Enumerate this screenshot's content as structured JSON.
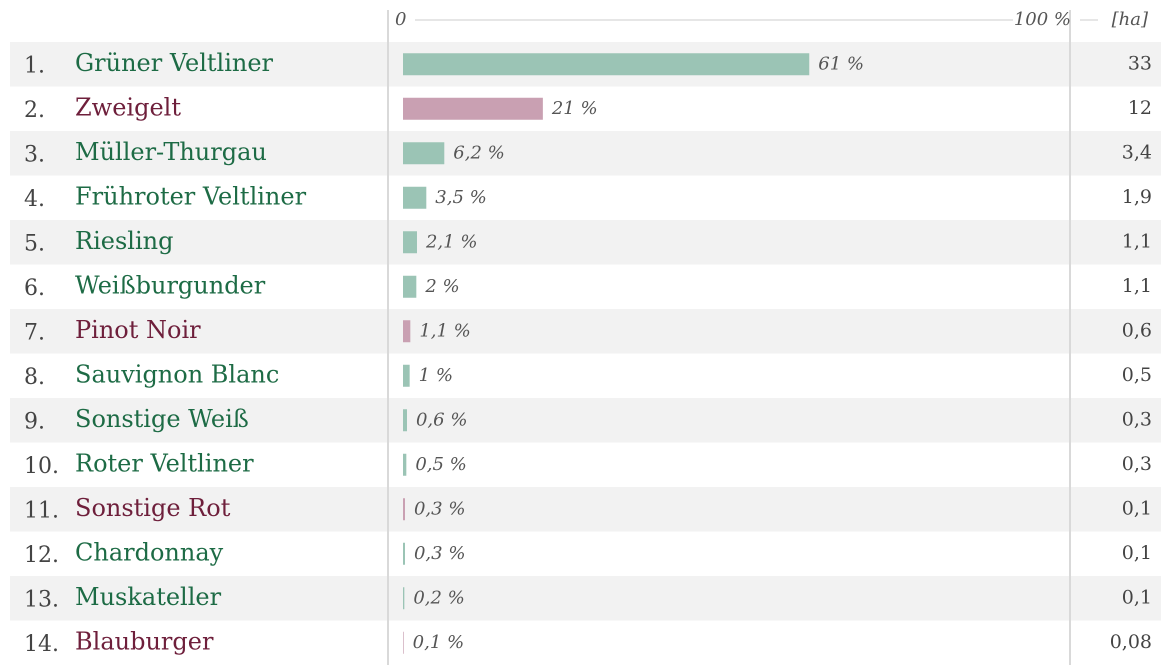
{
  "chart_data": {
    "type": "bar",
    "categories": [
      "Grüner Veltliner",
      "Zweigelt",
      "Müller-Thurgau",
      "Frühroter Veltliner",
      "Riesling",
      "Weißburgunder",
      "Pinot Noir",
      "Sauvignon Blanc",
      "Sonstige Weiß",
      "Roter Veltliner",
      "Sonstige Rot",
      "Chardonnay",
      "Muskateller",
      "Blauburger"
    ],
    "ranks": [
      "1.",
      "2.",
      "3.",
      "4.",
      "5.",
      "6.",
      "7.",
      "8.",
      "9.",
      "10.",
      "11.",
      "12.",
      "13.",
      "14."
    ],
    "values": [
      61,
      21,
      6.2,
      3.5,
      2.1,
      2,
      1.1,
      1,
      0.6,
      0.5,
      0.3,
      0.3,
      0.2,
      0.1
    ],
    "value_labels": [
      "61 %",
      "21 %",
      "6,2 %",
      "3,5 %",
      "2,1 %",
      "2 %",
      "1,1 %",
      "1 %",
      "0,6 %",
      "0,5 %",
      "0,3 %",
      "0,3 %",
      "0,2 %",
      "0,1 %"
    ],
    "hectares": [
      33,
      12,
      3.4,
      1.9,
      1.1,
      1.1,
      0.6,
      0.5,
      0.3,
      0.3,
      0.1,
      0.1,
      0.1,
      0.08
    ],
    "hectare_labels": [
      "33",
      "12",
      "3,4",
      "1,9",
      "1,1",
      "1,1",
      "0,6",
      "0,5",
      "0,3",
      "0,3",
      "0,1",
      "0,1",
      "0,1",
      "0,08"
    ],
    "hectare_header": "[ha]",
    "bar_colors": [
      "#9bc4b5",
      "#c9a0b2",
      "#9bc4b5",
      "#9bc4b5",
      "#9bc4b5",
      "#9bc4b5",
      "#c9a0b2",
      "#9bc4b5",
      "#9bc4b5",
      "#9bc4b5",
      "#c9a0b2",
      "#9bc4b5",
      "#9bc4b5",
      "#c9a0b2"
    ],
    "text_colors": [
      "#1d6b45",
      "#6e1f3b",
      "#1d6b45",
      "#1d6b45",
      "#1d6b45",
      "#1d6b45",
      "#6e1f3b",
      "#1d6b45",
      "#1d6b45",
      "#1d6b45",
      "#6e1f3b",
      "#1d6b45",
      "#1d6b45",
      "#6e1f3b"
    ],
    "xlim": [
      0,
      100
    ],
    "xticks": [
      0,
      {
        "value": 100,
        "label": "100 %"
      }
    ]
  }
}
